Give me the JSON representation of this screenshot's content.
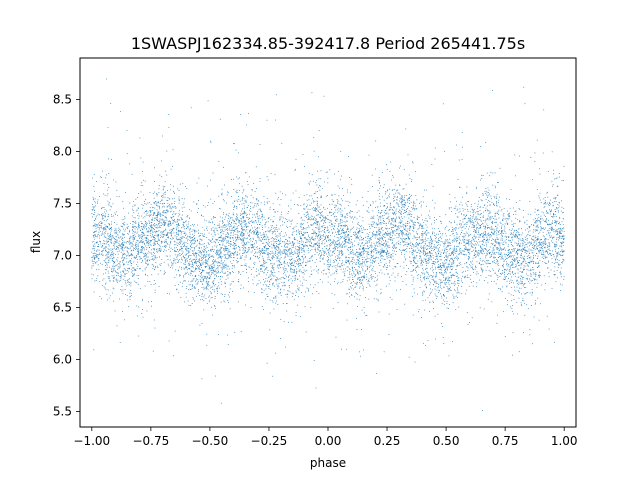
{
  "chart_data": {
    "type": "scatter",
    "title": "1SWASPJ162334.85-392417.8 Period 265441.75s",
    "xlabel": "phase",
    "ylabel": "flux",
    "xlim": [
      -1.05,
      1.05
    ],
    "ylim": [
      5.35,
      8.9
    ],
    "xticks": [
      -1.0,
      -0.75,
      -0.5,
      -0.25,
      0.0,
      0.25,
      0.5,
      0.75,
      1.0
    ],
    "xtick_labels": [
      "−1.00",
      "−0.75",
      "−0.50",
      "−0.25",
      "0.00",
      "0.25",
      "0.50",
      "0.75",
      "1.00"
    ],
    "yticks": [
      5.5,
      6.0,
      6.5,
      7.0,
      7.5,
      8.0,
      8.5
    ],
    "ytick_labels": [
      "5.5",
      "6.0",
      "6.5",
      "7.0",
      "7.5",
      "8.0",
      "8.5"
    ],
    "grid": false,
    "legend": "none",
    "marker_color": "#1f77b4",
    "x_domain": [
      -1.0,
      1.0
    ],
    "point_count": 9000,
    "profile_phase": [
      0.0,
      0.05,
      0.1,
      0.15,
      0.2,
      0.25,
      0.3,
      0.35,
      0.4,
      0.45,
      0.5,
      0.55,
      0.6,
      0.65,
      0.7,
      0.75,
      0.8,
      0.85,
      0.9,
      0.95,
      1.0
    ],
    "profile_flux": [
      7.15,
      7.2,
      7.05,
      7.0,
      7.1,
      7.2,
      7.3,
      7.25,
      7.05,
      6.95,
      6.9,
      7.05,
      7.15,
      7.25,
      7.2,
      7.05,
      7.0,
      6.95,
      7.15,
      7.25,
      7.15
    ]
  }
}
